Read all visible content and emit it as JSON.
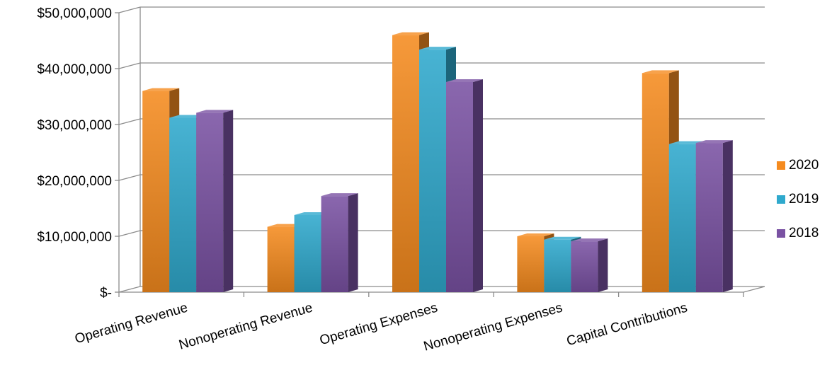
{
  "chart_data": {
    "type": "bar",
    "categories": [
      "Operating Revenue",
      "Nonoperating Revenue",
      "Operating Expenses",
      "Nonoperating Expenses",
      "Capital Contributions"
    ],
    "series": [
      {
        "name": "2020",
        "color": "#f58b1f",
        "values": [
          36000000,
          11700000,
          46000000,
          10000000,
          39200000
        ]
      },
      {
        "name": "2019",
        "color": "#2fa9cd",
        "values": [
          31200000,
          13800000,
          43400000,
          9400000,
          26500000
        ]
      },
      {
        "name": "2018",
        "color": "#7a52a3",
        "values": [
          32100000,
          17200000,
          37600000,
          9100000,
          26700000
        ]
      }
    ],
    "y_ticks": [
      "$-",
      "$10,000,000",
      "$20,000,000",
      "$30,000,000",
      "$40,000,000",
      "$50,000,000"
    ],
    "ylim": [
      0,
      50000000
    ],
    "grid": true,
    "style": "3d-clustered-column",
    "legend_position": "right",
    "title": "",
    "xlabel": "",
    "ylabel": ""
  }
}
